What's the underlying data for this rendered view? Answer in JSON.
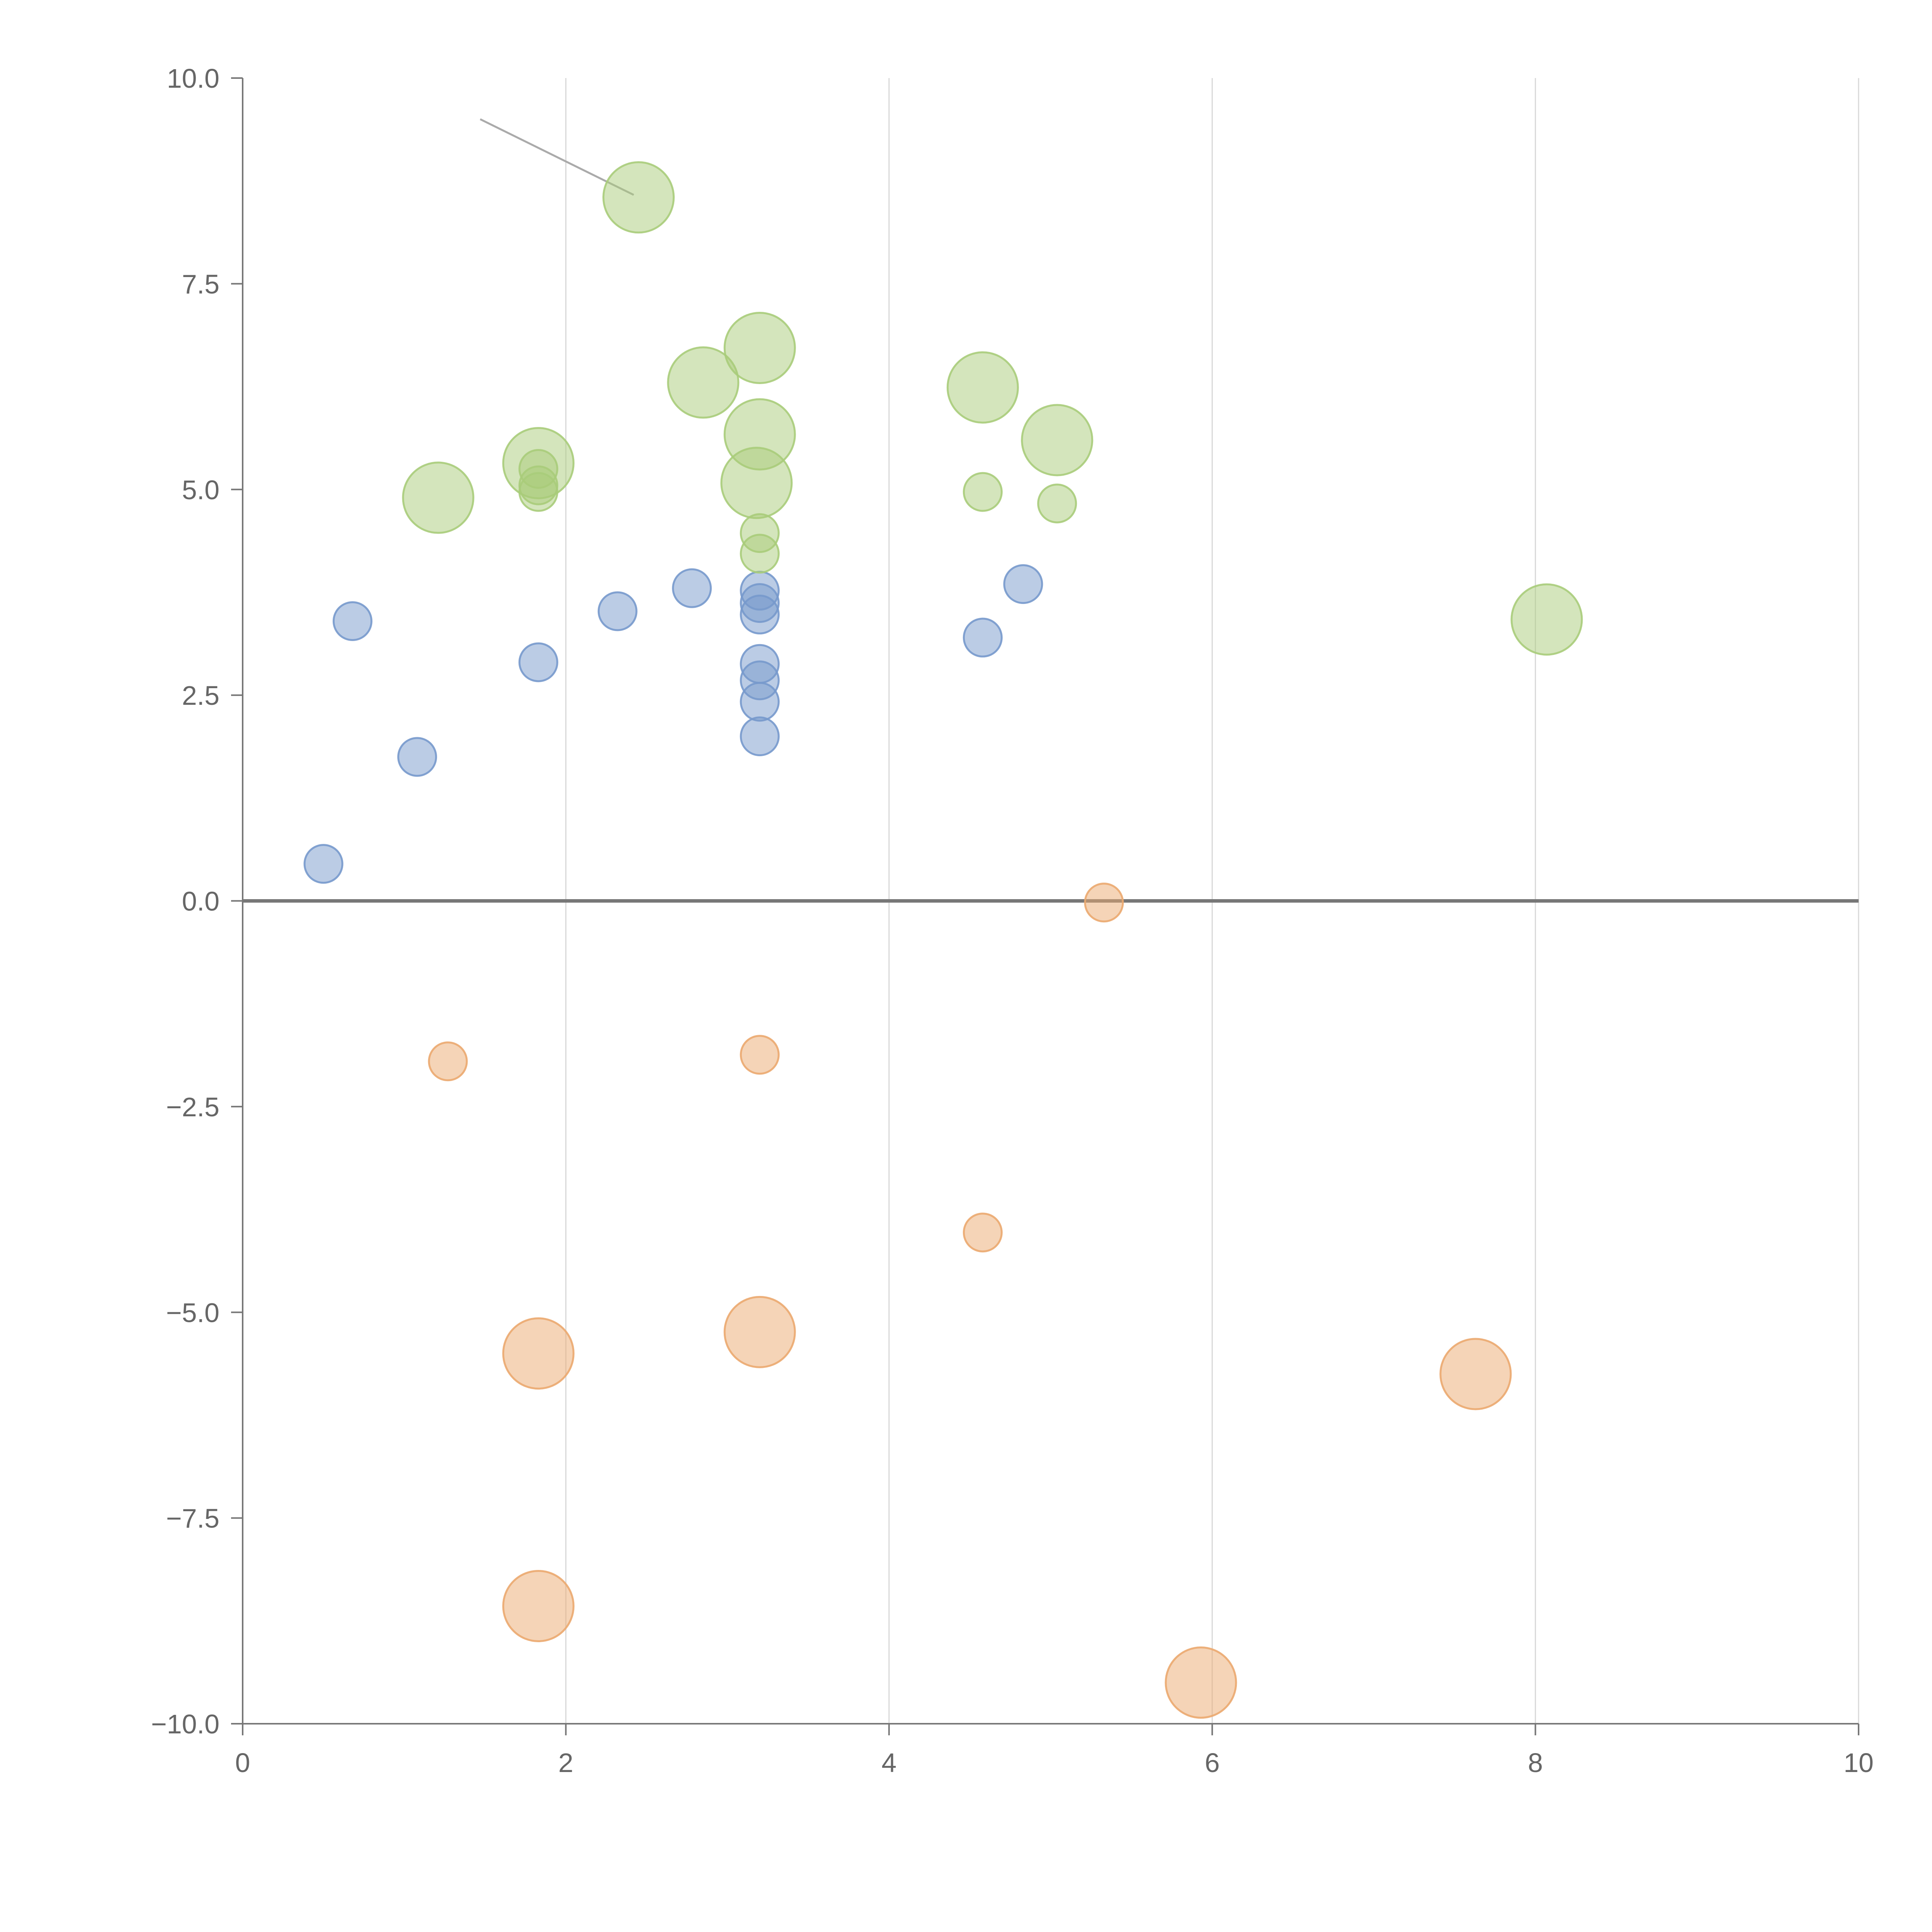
{
  "chart_data": {
    "type": "scatter",
    "title": "",
    "xlabel": "",
    "ylabel": "",
    "xlim": [
      0,
      10
    ],
    "ylim": [
      -10,
      10
    ],
    "x_ticks": [
      "0",
      "2",
      "4",
      "6",
      "8",
      "10"
    ],
    "x_tick_values": [
      0,
      2,
      4,
      6,
      8,
      10
    ],
    "y_ticks": [
      "10.0",
      "7.5",
      "5.0",
      "2.5",
      "0.0",
      "−2.5",
      "−5.0",
      "−7.5",
      "−10.0"
    ],
    "y_tick_values": [
      10,
      7.5,
      5,
      2.5,
      0,
      -2.5,
      -5,
      -7.5,
      -10
    ],
    "grid": "vertical",
    "zero_line": true,
    "size_scale": {
      "small": 1,
      "large": 2
    },
    "series": [
      {
        "name": "blue",
        "color": "#7799cc",
        "points": [
          {
            "x": 0.5,
            "y": 0.45,
            "size": 1
          },
          {
            "x": 0.68,
            "y": 3.4,
            "size": 1
          },
          {
            "x": 1.08,
            "y": 1.75,
            "size": 1
          },
          {
            "x": 1.83,
            "y": 2.9,
            "size": 1
          },
          {
            "x": 2.32,
            "y": 3.52,
            "size": 1
          },
          {
            "x": 2.78,
            "y": 3.8,
            "size": 1
          },
          {
            "x": 3.2,
            "y": 3.77,
            "size": 1
          },
          {
            "x": 3.2,
            "y": 3.62,
            "size": 1
          },
          {
            "x": 3.2,
            "y": 3.48,
            "size": 1
          },
          {
            "x": 3.2,
            "y": 2.88,
            "size": 1
          },
          {
            "x": 3.2,
            "y": 2.68,
            "size": 1
          },
          {
            "x": 3.2,
            "y": 2.42,
            "size": 1
          },
          {
            "x": 3.2,
            "y": 2.0,
            "size": 1
          },
          {
            "x": 4.58,
            "y": 3.2,
            "size": 1
          },
          {
            "x": 4.83,
            "y": 3.85,
            "size": 1
          }
        ]
      },
      {
        "name": "green",
        "color": "#a9cc7a",
        "points": [
          {
            "x": 2.45,
            "y": 8.55,
            "size": 2
          },
          {
            "x": 1.21,
            "y": 4.9,
            "size": 2
          },
          {
            "x": 1.83,
            "y": 5.32,
            "size": 2
          },
          {
            "x": 1.83,
            "y": 5.25,
            "size": 1
          },
          {
            "x": 1.83,
            "y": 5.05,
            "size": 1
          },
          {
            "x": 1.83,
            "y": 4.97,
            "size": 1
          },
          {
            "x": 2.85,
            "y": 6.3,
            "size": 2
          },
          {
            "x": 3.2,
            "y": 6.72,
            "size": 2
          },
          {
            "x": 3.2,
            "y": 5.67,
            "size": 2
          },
          {
            "x": 3.18,
            "y": 5.08,
            "size": 2
          },
          {
            "x": 3.2,
            "y": 4.47,
            "size": 1
          },
          {
            "x": 3.2,
            "y": 4.22,
            "size": 1
          },
          {
            "x": 4.58,
            "y": 6.24,
            "size": 2
          },
          {
            "x": 4.58,
            "y": 4.97,
            "size": 1
          },
          {
            "x": 5.04,
            "y": 5.6,
            "size": 2
          },
          {
            "x": 5.04,
            "y": 4.83,
            "size": 1
          },
          {
            "x": 8.07,
            "y": 3.42,
            "size": 2
          }
        ]
      },
      {
        "name": "orange",
        "color": "#eba96f",
        "points": [
          {
            "x": 1.27,
            "y": -1.95,
            "size": 1
          },
          {
            "x": 3.2,
            "y": -1.87,
            "size": 1
          },
          {
            "x": 5.33,
            "y": -0.02,
            "size": 1
          },
          {
            "x": 4.58,
            "y": -4.03,
            "size": 1
          },
          {
            "x": 1.83,
            "y": -5.5,
            "size": 2
          },
          {
            "x": 3.2,
            "y": -5.24,
            "size": 2
          },
          {
            "x": 7.63,
            "y": -5.75,
            "size": 2
          },
          {
            "x": 1.83,
            "y": -8.57,
            "size": 2
          },
          {
            "x": 5.93,
            "y": -9.5,
            "size": 2
          }
        ]
      }
    ],
    "annotations": [
      {
        "type": "leader-line",
        "from": {
          "x": 1.47,
          "y": 9.5
        },
        "to": {
          "x": 2.42,
          "y": 8.58
        },
        "color": "#aaaaaa"
      }
    ]
  }
}
